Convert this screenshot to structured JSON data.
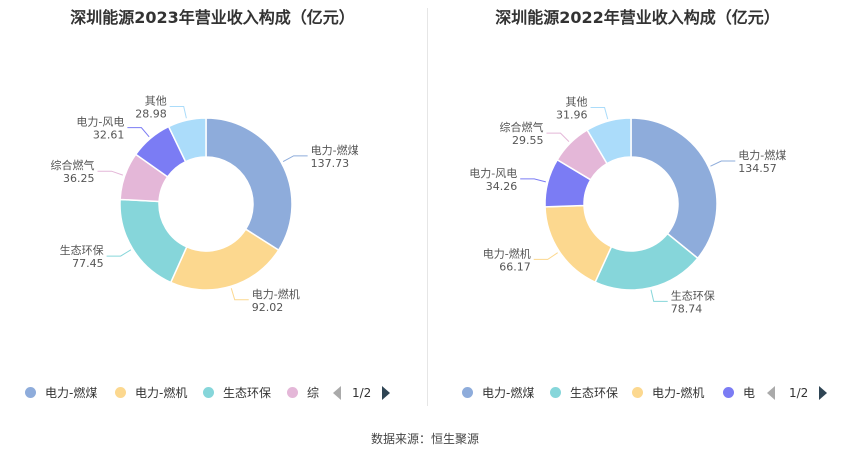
{
  "chart_data": [
    {
      "type": "pie",
      "title": "深圳能源2023年营业收入构成（亿元）",
      "slices": [
        {
          "name": "电力-燃煤",
          "value": 137.73,
          "value_label": "137.73",
          "color": "#8eacdb"
        },
        {
          "name": "电力-燃机",
          "value": 92.02,
          "value_label": "92.02",
          "color": "#fcd88f"
        },
        {
          "name": "生态环保",
          "value": 77.45,
          "value_label": "77.45",
          "color": "#86d6da"
        },
        {
          "name": "综合燃气",
          "value": 36.25,
          "value_label": "36.25",
          "color": "#e4b7d8"
        },
        {
          "name": "电力-风电",
          "value": 32.61,
          "value_label": "32.61",
          "color": "#7b7cf4"
        },
        {
          "name": "其他",
          "value": 28.98,
          "value_label": "28.98",
          "color": "#abdcfa"
        }
      ],
      "legend": {
        "items": [
          {
            "label": "电力-燃煤",
            "color": "#8eacdb"
          },
          {
            "label": "电力-燃机",
            "color": "#fcd88f"
          },
          {
            "label": "生态环保",
            "color": "#86d6da"
          },
          {
            "label": "综",
            "color": "#e4b7d8"
          }
        ],
        "page": "1/2"
      }
    },
    {
      "type": "pie",
      "title": "深圳能源2022年营业收入构成（亿元）",
      "slices": [
        {
          "name": "电力-燃煤",
          "value": 134.57,
          "value_label": "134.57",
          "color": "#8eacdb"
        },
        {
          "name": "生态环保",
          "value": 78.74,
          "value_label": "78.74",
          "color": "#86d6da"
        },
        {
          "name": "电力-燃机",
          "value": 66.17,
          "value_label": "66.17",
          "color": "#fcd88f"
        },
        {
          "name": "电力-风电",
          "value": 34.26,
          "value_label": "34.26",
          "color": "#7b7cf4"
        },
        {
          "name": "综合燃气",
          "value": 29.55,
          "value_label": "29.55",
          "color": "#e4b7d8"
        },
        {
          "name": "其他",
          "value": 31.96,
          "value_label": "31.96",
          "color": "#abdcfa"
        }
      ],
      "legend": {
        "items": [
          {
            "label": "电力-燃煤",
            "color": "#8eacdb"
          },
          {
            "label": "生态环保",
            "color": "#86d6da"
          },
          {
            "label": "电力-燃机",
            "color": "#fcd88f"
          },
          {
            "label": "电",
            "color": "#7b7cf4"
          }
        ],
        "page": "1/2"
      }
    }
  ],
  "source": "数据来源：恒生聚源"
}
